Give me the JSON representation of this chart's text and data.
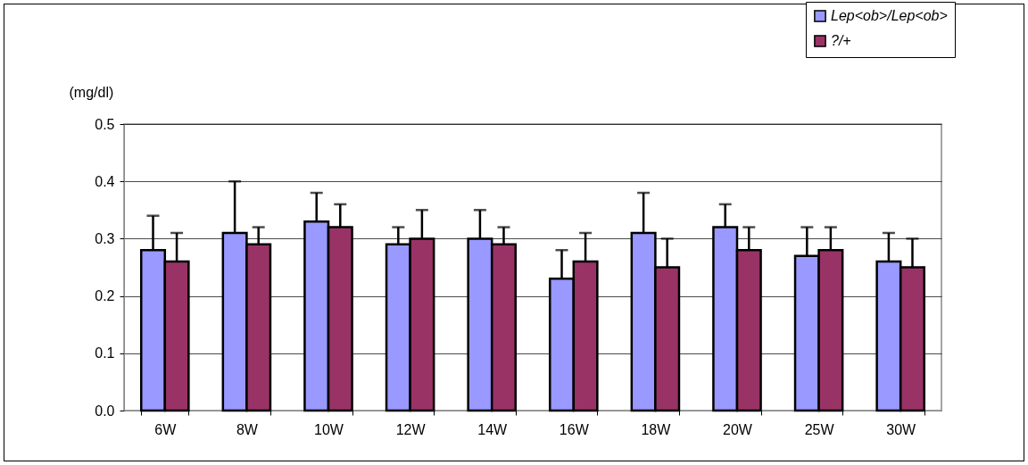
{
  "chart_data": {
    "type": "bar",
    "ylabel": "(mg/dl)",
    "categories": [
      "6W",
      "8W",
      "10W",
      "12W",
      "14W",
      "16W",
      "18W",
      "20W",
      "25W",
      "30W"
    ],
    "series": [
      {
        "name": "Lep<ob>/Lep<ob>",
        "color": "#9999ff",
        "values": [
          0.28,
          0.31,
          0.33,
          0.29,
          0.3,
          0.23,
          0.31,
          0.32,
          0.27,
          0.26
        ],
        "errors": [
          0.06,
          0.09,
          0.05,
          0.03,
          0.05,
          0.05,
          0.07,
          0.04,
          0.05,
          0.05
        ]
      },
      {
        "name": "?/+",
        "color": "#993366",
        "values": [
          0.26,
          0.29,
          0.32,
          0.3,
          0.29,
          0.26,
          0.25,
          0.28,
          0.28,
          0.25
        ],
        "errors": [
          0.05,
          0.03,
          0.04,
          0.05,
          0.03,
          0.05,
          0.05,
          0.04,
          0.04,
          0.05
        ]
      }
    ],
    "ylim": [
      0,
      0.5
    ],
    "yticks": [
      {
        "value": 0,
        "label": "0.0"
      },
      {
        "value": 0.1,
        "label": "0.1"
      },
      {
        "value": 0.2,
        "label": "0.2"
      },
      {
        "value": 0.3,
        "label": "0.3"
      },
      {
        "value": 0.4,
        "label": "0.4"
      },
      {
        "value": 0.5,
        "label": "0.5"
      }
    ],
    "grid": "y",
    "legend": "top right"
  }
}
